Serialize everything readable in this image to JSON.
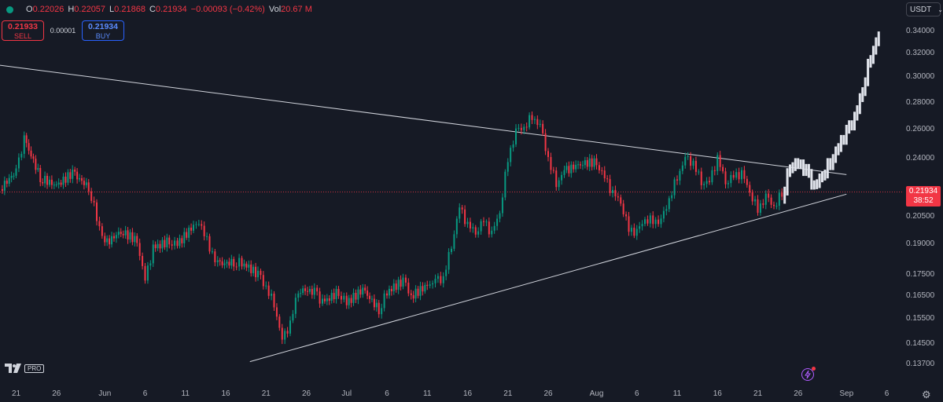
{
  "legend": {
    "open_key": "O",
    "open": "0.22026",
    "high_key": "H",
    "high": "0.22057",
    "low_key": "L",
    "low": "0.21868",
    "close_key": "C",
    "close": "0.21934",
    "change": "−0.00093 (−0.42%)",
    "vol_key": "Vol",
    "vol": "20.67 M"
  },
  "trade": {
    "sell_price": "0.21933",
    "sell_label": "SELL",
    "spread": "0.00001",
    "buy_price": "0.21934",
    "buy_label": "BUY"
  },
  "currency": {
    "label": "USDT"
  },
  "price_label": {
    "price": "0.21934",
    "countdown": "38:52"
  },
  "logo": {
    "pro": "PRO"
  },
  "colors": {
    "up": "#089981",
    "down": "#f23645",
    "bg": "#161a25",
    "projection": "#e0e3eb",
    "trendline": "#d1d4dc"
  },
  "icons": {
    "settings": "gear-icon",
    "bolt": "lightning-icon"
  },
  "chart_data": {
    "type": "line",
    "y_scale": "log",
    "y_tick_labels": [
      "0.34000",
      "0.32000",
      "0.30000",
      "0.28000",
      "0.26000",
      "0.24000",
      "0.20500",
      "0.19000",
      "0.17500",
      "0.16500",
      "0.15500",
      "0.14500",
      "0.13700"
    ],
    "y_ticks": [
      0.34,
      0.32,
      0.3,
      0.28,
      0.26,
      0.24,
      0.205,
      0.19,
      0.175,
      0.165,
      0.155,
      0.145,
      0.137
    ],
    "x_tick_labels": [
      "21",
      "26",
      "Jun",
      "6",
      "11",
      "16",
      "21",
      "26",
      "Jul",
      "6",
      "11",
      "16",
      "21",
      "26",
      "Aug",
      "6",
      "11",
      "16",
      "21",
      "26",
      "Sep",
      "6"
    ],
    "x_ticks": [
      "2024-05-21",
      "2024-05-26",
      "2024-06-01",
      "2024-06-06",
      "2024-06-11",
      "2024-06-16",
      "2024-06-21",
      "2024-06-26",
      "2024-07-01",
      "2024-07-06",
      "2024-07-11",
      "2024-07-16",
      "2024-07-21",
      "2024-07-26",
      "2024-08-01",
      "2024-08-06",
      "2024-08-11",
      "2024-08-16",
      "2024-08-21",
      "2024-08-26",
      "2024-09-01",
      "2024-09-06"
    ],
    "x_range": [
      "2024-05-19",
      "2024-09-08"
    ],
    "current_price": 0.21934,
    "price_series": [
      [
        "2024-05-19",
        0.221
      ],
      [
        "2024-05-21",
        0.232
      ],
      [
        "2024-05-22",
        0.253
      ],
      [
        "2024-05-24",
        0.228
      ],
      [
        "2024-05-26",
        0.223
      ],
      [
        "2024-05-28",
        0.231
      ],
      [
        "2024-05-30",
        0.222
      ],
      [
        "2024-05-31",
        0.205
      ],
      [
        "2024-06-01",
        0.19
      ],
      [
        "2024-06-03",
        0.197
      ],
      [
        "2024-06-05",
        0.192
      ],
      [
        "2024-06-06",
        0.172
      ],
      [
        "2024-06-07",
        0.188
      ],
      [
        "2024-06-09",
        0.192
      ],
      [
        "2024-06-10",
        0.19
      ],
      [
        "2024-06-12",
        0.2
      ],
      [
        "2024-06-13",
        0.201
      ],
      [
        "2024-06-14",
        0.188
      ],
      [
        "2024-06-15",
        0.18
      ],
      [
        "2024-06-17",
        0.181
      ],
      [
        "2024-06-18",
        0.181
      ],
      [
        "2024-06-20",
        0.175
      ],
      [
        "2024-06-21",
        0.169
      ],
      [
        "2024-06-22",
        0.162
      ],
      [
        "2024-06-23",
        0.146
      ],
      [
        "2024-06-24",
        0.153
      ],
      [
        "2024-06-25",
        0.168
      ],
      [
        "2024-06-27",
        0.167
      ],
      [
        "2024-06-28",
        0.162
      ],
      [
        "2024-06-30",
        0.167
      ],
      [
        "2024-07-01",
        0.162
      ],
      [
        "2024-07-03",
        0.168
      ],
      [
        "2024-07-05",
        0.159
      ],
      [
        "2024-07-06",
        0.167
      ],
      [
        "2024-07-08",
        0.172
      ],
      [
        "2024-07-09",
        0.165
      ],
      [
        "2024-07-11",
        0.17
      ],
      [
        "2024-07-12",
        0.172
      ],
      [
        "2024-07-13",
        0.173
      ],
      [
        "2024-07-14",
        0.19
      ],
      [
        "2024-07-15",
        0.21
      ],
      [
        "2024-07-16",
        0.2
      ],
      [
        "2024-07-17",
        0.197
      ],
      [
        "2024-07-18",
        0.203
      ],
      [
        "2024-07-19",
        0.195
      ],
      [
        "2024-07-20",
        0.208
      ],
      [
        "2024-07-21",
        0.24
      ],
      [
        "2024-07-22",
        0.258
      ],
      [
        "2024-07-23",
        0.262
      ],
      [
        "2024-07-24",
        0.27
      ],
      [
        "2024-07-25",
        0.262
      ],
      [
        "2024-07-26",
        0.24
      ],
      [
        "2024-07-27",
        0.225
      ],
      [
        "2024-07-28",
        0.232
      ],
      [
        "2024-07-30",
        0.237
      ],
      [
        "2024-08-01",
        0.238
      ],
      [
        "2024-08-02",
        0.228
      ],
      [
        "2024-08-03",
        0.218
      ],
      [
        "2024-08-04",
        0.214
      ],
      [
        "2024-08-05",
        0.198
      ],
      [
        "2024-08-06",
        0.196
      ],
      [
        "2024-08-07",
        0.204
      ],
      [
        "2024-08-08",
        0.203
      ],
      [
        "2024-08-09",
        0.202
      ],
      [
        "2024-08-10",
        0.215
      ],
      [
        "2024-08-11",
        0.229
      ],
      [
        "2024-08-12",
        0.24
      ],
      [
        "2024-08-13",
        0.237
      ],
      [
        "2024-08-14",
        0.226
      ],
      [
        "2024-08-15",
        0.225
      ],
      [
        "2024-08-16",
        0.24
      ],
      [
        "2024-08-17",
        0.226
      ],
      [
        "2024-08-18",
        0.229
      ],
      [
        "2024-08-19",
        0.23
      ],
      [
        "2024-08-20",
        0.22
      ],
      [
        "2024-08-21",
        0.209
      ],
      [
        "2024-08-22",
        0.216
      ],
      [
        "2024-08-23",
        0.211
      ],
      [
        "2024-08-24",
        0.219
      ]
    ],
    "projection_series": [
      [
        "2024-08-24",
        0.215
      ],
      [
        "2024-08-25",
        0.236
      ],
      [
        "2024-08-26",
        0.237
      ],
      [
        "2024-08-27",
        0.232
      ],
      [
        "2024-08-28",
        0.222
      ],
      [
        "2024-08-29",
        0.23
      ],
      [
        "2024-08-30",
        0.238
      ],
      [
        "2024-08-31",
        0.248
      ],
      [
        "2024-09-01",
        0.258
      ],
      [
        "2024-09-02",
        0.268
      ],
      [
        "2024-09-03",
        0.29
      ],
      [
        "2024-09-04",
        0.318
      ],
      [
        "2024-09-05",
        0.336
      ]
    ],
    "trendlines": [
      {
        "from": [
          "2024-05-19",
          0.31
        ],
        "to": [
          "2024-09-01",
          0.23
        ]
      },
      {
        "from": [
          "2024-06-19",
          0.138
        ],
        "to": [
          "2024-09-01",
          0.218
        ]
      }
    ]
  }
}
